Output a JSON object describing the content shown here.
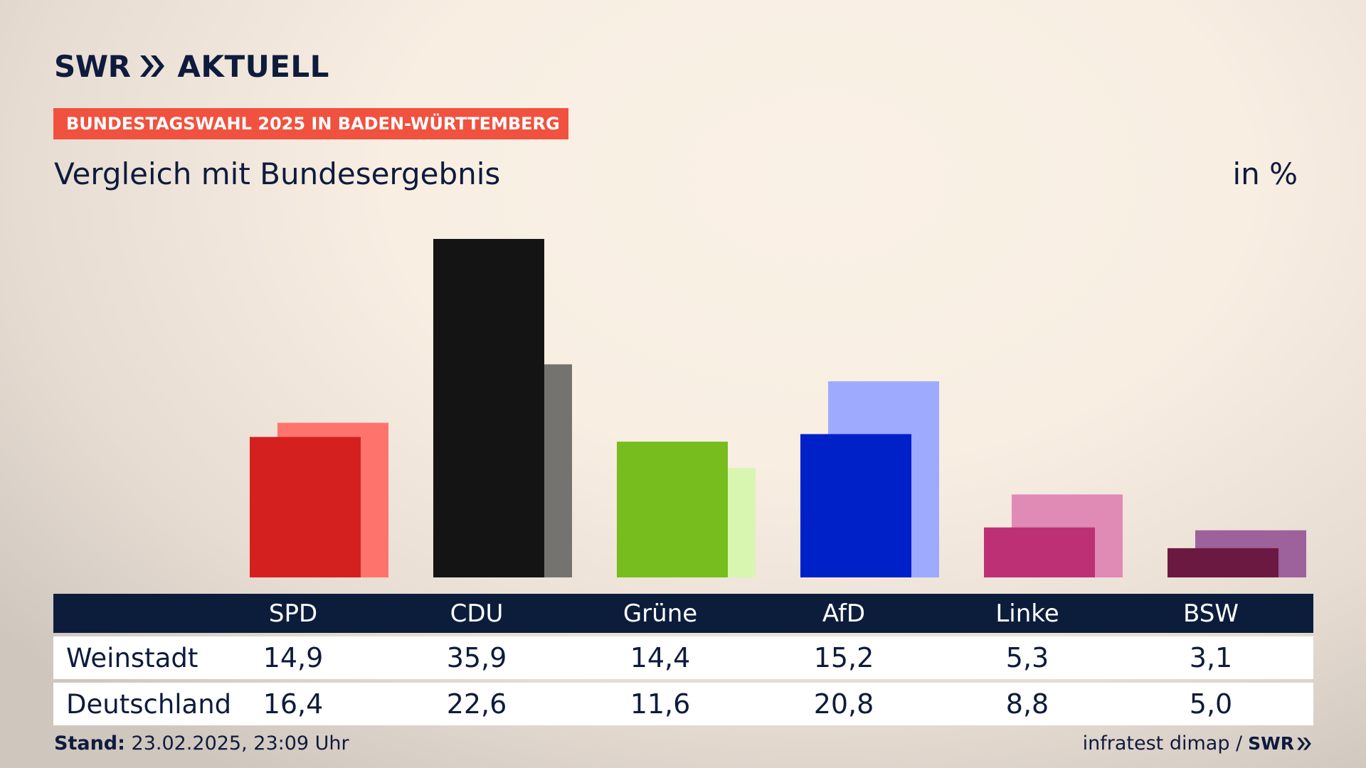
{
  "header": {
    "brand": "SWR",
    "brand_sub": "AKTUELL",
    "banner": "BUNDESTAGSWAHL 2025 IN BADEN-WÜRTTEMBERG",
    "subtitle": "Vergleich mit Bundesergebnis",
    "unit": "in %"
  },
  "colors": {
    "navy": "#0c1d3c",
    "banner": "#f0523f",
    "SPD": [
      "#d52020",
      "#fe746c"
    ],
    "CDU": [
      "#141414",
      "#747370"
    ],
    "Grüne": [
      "#77bd1e",
      "#d8f6b0"
    ],
    "AfD": [
      "#0020c8",
      "#9daafe"
    ],
    "Linke": [
      "#bd3075",
      "#e08ab6"
    ],
    "BSW": [
      "#6b1940",
      "#9d619c"
    ]
  },
  "chart_data": {
    "type": "bar",
    "categories": [
      "SPD",
      "CDU",
      "Grüne",
      "AfD",
      "Linke",
      "BSW"
    ],
    "series": [
      {
        "name": "Weinstadt",
        "values": [
          14.9,
          35.9,
          14.4,
          15.2,
          5.3,
          3.1
        ]
      },
      {
        "name": "Deutschland",
        "values": [
          16.4,
          22.6,
          11.6,
          20.8,
          8.8,
          5.0
        ]
      }
    ],
    "title": "Vergleich mit Bundesergebnis",
    "ylim": [
      0,
      35.9
    ],
    "grid": false
  },
  "table": {
    "rows": [
      {
        "label": "Weinstadt",
        "cells": [
          "14,9",
          "35,9",
          "14,4",
          "15,2",
          "5,3",
          "3,1"
        ]
      },
      {
        "label": "Deutschland",
        "cells": [
          "16,4",
          "22,6",
          "11,6",
          "20,8",
          "8,8",
          "5,0"
        ]
      }
    ]
  },
  "footer": {
    "stand_label": "Stand:",
    "stand_value": "23.02.2025, 23:09 Uhr",
    "source": "infratest dimap /",
    "source_brand": "SWR"
  }
}
